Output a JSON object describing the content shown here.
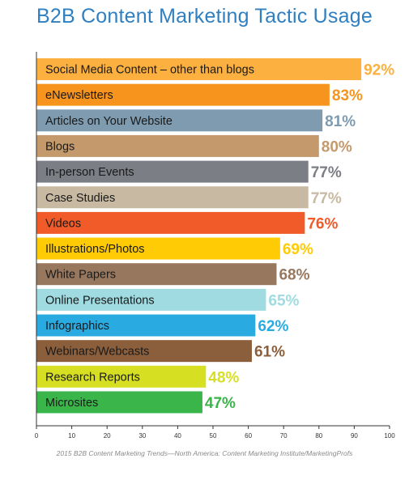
{
  "chart_data": {
    "type": "bar",
    "orientation": "horizontal",
    "title": "B2B Content Marketing Tactic Usage",
    "categories": [
      "Social Media Content – other than blogs",
      "eNewsletters",
      "Articles on Your Website",
      "Blogs",
      "In-person Events",
      "Case Studies",
      "Videos",
      "Illustrations/Photos",
      "White Papers",
      "Online Presentations",
      "Infographics",
      "Webinars/Webcasts",
      "Research Reports",
      "Microsites"
    ],
    "values": [
      92,
      83,
      81,
      80,
      77,
      77,
      76,
      69,
      68,
      65,
      62,
      61,
      48,
      47
    ],
    "value_labels": [
      "92%",
      "83%",
      "81%",
      "80%",
      "77%",
      "77%",
      "76%",
      "69%",
      "68%",
      "65%",
      "62%",
      "61%",
      "48%",
      "47%"
    ],
    "colors": [
      "#fbb040",
      "#f7941d",
      "#7f9bb0",
      "#c49a6c",
      "#7b7e85",
      "#c8b9a2",
      "#f15a29",
      "#ffcb05",
      "#97785f",
      "#9fdbe0",
      "#29abe2",
      "#8b5e3c",
      "#d7df23",
      "#39b54a"
    ],
    "xlim": [
      0,
      100
    ],
    "x_ticks": [
      "0",
      "10",
      "20",
      "30",
      "40",
      "50",
      "60",
      "70",
      "80",
      "90",
      "100"
    ],
    "grid": false,
    "legend": false,
    "xlabel": "",
    "ylabel": ""
  },
  "source": "2015 B2B Content Marketing Trends—North America: Content Marketing Institute/MarketingProfs"
}
